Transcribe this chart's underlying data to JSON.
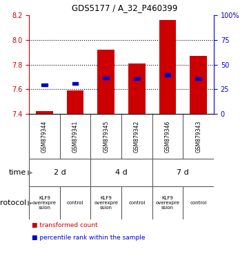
{
  "title": "GDS5177 / A_32_P460399",
  "samples": [
    "GSM879344",
    "GSM879341",
    "GSM879345",
    "GSM879342",
    "GSM879346",
    "GSM879343"
  ],
  "bar_bottoms": [
    7.4,
    7.4,
    7.4,
    7.4,
    7.4,
    7.4
  ],
  "bar_tops": [
    7.42,
    7.59,
    7.92,
    7.81,
    8.16,
    7.87
  ],
  "percentile_values": [
    7.635,
    7.645,
    7.69,
    7.685,
    7.715,
    7.685
  ],
  "ylim_left": [
    7.4,
    8.2
  ],
  "ylim_right": [
    0,
    100
  ],
  "yticks_left": [
    7.4,
    7.6,
    7.8,
    8.0,
    8.2
  ],
  "yticks_right": [
    0,
    25,
    50,
    75,
    100
  ],
  "ytick_right_labels": [
    "0",
    "25",
    "50",
    "75",
    "100%"
  ],
  "bar_color": "#cc0000",
  "percentile_color": "#0000cc",
  "time_groups": [
    {
      "label": "2 d",
      "start": 0,
      "end": 2,
      "color": "#ccffcc"
    },
    {
      "label": "4 d",
      "start": 2,
      "end": 4,
      "color": "#55ee55"
    },
    {
      "label": "7 d",
      "start": 4,
      "end": 6,
      "color": "#33cc33"
    }
  ],
  "protocol_groups": [
    {
      "label": "KLF9\noverexpre\nssion",
      "start": 0,
      "end": 1,
      "color": "#ee66ee"
    },
    {
      "label": "control",
      "start": 1,
      "end": 2,
      "color": "#ee66ee"
    },
    {
      "label": "KLF9\noverexpre\nssion",
      "start": 2,
      "end": 3,
      "color": "#ee66ee"
    },
    {
      "label": "control",
      "start": 3,
      "end": 4,
      "color": "#ee66ee"
    },
    {
      "label": "KLF9\noverexpre\nssion",
      "start": 4,
      "end": 5,
      "color": "#ee66ee"
    },
    {
      "label": "control",
      "start": 5,
      "end": 6,
      "color": "#ee66ee"
    }
  ],
  "time_label": "time",
  "protocol_label": "protocol",
  "legend_bar_label": "transformed count",
  "legend_pct_label": "percentile rank within the sample",
  "background_color": "#ffffff",
  "left_axis_color": "#cc0000",
  "right_axis_color": "#0000cc",
  "sample_bg_color": "#cccccc",
  "grid_yticks": [
    7.6,
    7.8,
    8.0
  ],
  "figwidth": 3.61,
  "figheight": 3.84,
  "dpi": 100
}
